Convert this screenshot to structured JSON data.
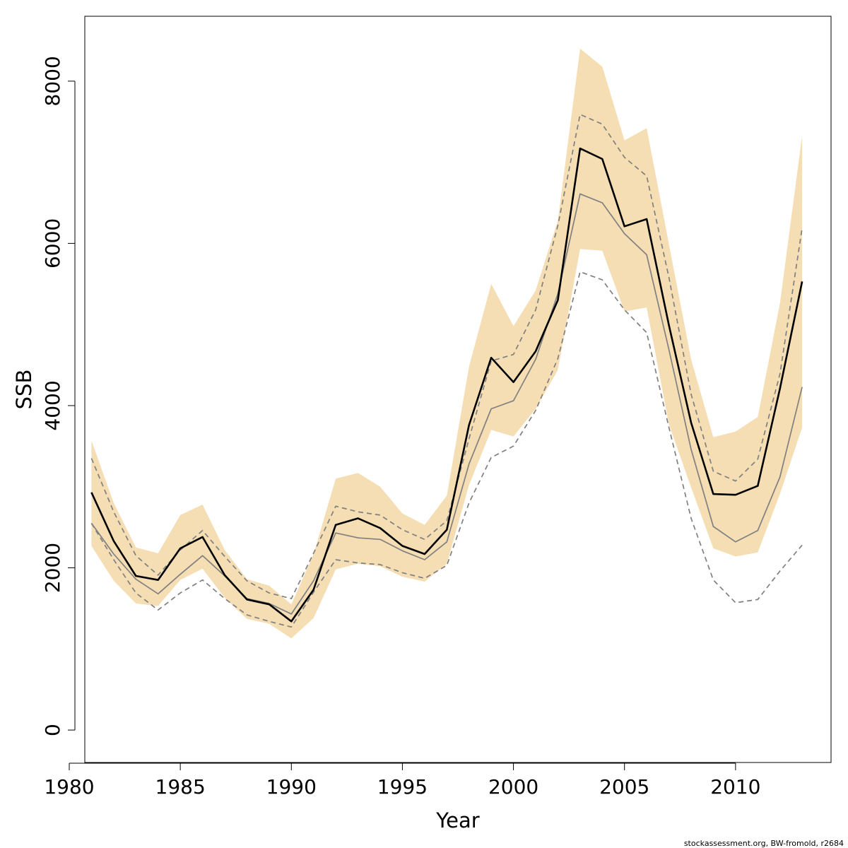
{
  "chart_data": {
    "type": "line",
    "xlabel": "Year",
    "ylabel": "SSB",
    "xlim": [
      1980.7,
      2014.3
    ],
    "ylim": [
      -400,
      8800
    ],
    "xticks": [
      1980,
      1985,
      1990,
      1995,
      2000,
      2005,
      2010
    ],
    "yticks": [
      0,
      2000,
      4000,
      6000,
      8000
    ],
    "grid": false,
    "legend": "none",
    "x": [
      1981,
      1982,
      1983,
      1984,
      1985,
      1986,
      1987,
      1988,
      1989,
      1990,
      1991,
      1992,
      1993,
      1994,
      1995,
      1996,
      1997,
      1998,
      1999,
      2000,
      2001,
      2002,
      2003,
      2004,
      2005,
      2006,
      2007,
      2008,
      2009,
      2010,
      2011,
      2012,
      2013
    ],
    "band": {
      "lower": [
        2270,
        1840,
        1560,
        1530,
        1850,
        1990,
        1630,
        1370,
        1310,
        1130,
        1380,
        1980,
        2050,
        2020,
        1890,
        1830,
        2050,
        3020,
        3700,
        3620,
        3960,
        4440,
        5930,
        5910,
        5160,
        5210,
        3770,
        2990,
        2240,
        2140,
        2190,
        2910,
        3730
      ],
      "upper": [
        3570,
        2800,
        2250,
        2180,
        2650,
        2780,
        2220,
        1860,
        1780,
        1550,
        2170,
        3100,
        3170,
        3000,
        2670,
        2530,
        2890,
        4480,
        5500,
        4980,
        5420,
        6280,
        8400,
        8180,
        7270,
        7420,
        5990,
        4570,
        3610,
        3680,
        3860,
        5260,
        7330
      ],
      "color": "#f5deb3"
    },
    "series": [
      {
        "values": [
          2930,
          2330,
          1900,
          1850,
          2240,
          2380,
          1910,
          1610,
          1550,
          1340,
          1730,
          2530,
          2610,
          2490,
          2270,
          2170,
          2470,
          3760,
          4590,
          4290,
          4670,
          5300,
          7170,
          7040,
          6210,
          6300,
          4990,
          3790,
          2910,
          2900,
          3010,
          4210,
          5530
        ],
        "color": "#000000",
        "style": "solid",
        "width": 2.6
      },
      {
        "values": [
          2550,
          2170,
          1860,
          1680,
          1920,
          2150,
          1900,
          1620,
          1560,
          1430,
          1840,
          2430,
          2370,
          2350,
          2210,
          2100,
          2320,
          3280,
          3960,
          4060,
          4570,
          5380,
          6610,
          6500,
          6120,
          5860,
          4690,
          3460,
          2510,
          2320,
          2460,
          3120,
          4230
        ],
        "color": "#808080",
        "style": "solid",
        "width": 1.7
      },
      {
        "values": [
          3350,
          2690,
          2150,
          1910,
          2220,
          2460,
          2140,
          1840,
          1690,
          1620,
          2180,
          2760,
          2690,
          2650,
          2470,
          2350,
          2580,
          3590,
          4550,
          4630,
          5180,
          6220,
          7590,
          7470,
          7060,
          6830,
          5580,
          4140,
          3190,
          3070,
          3340,
          4390,
          6190
        ],
        "color": "#808080",
        "style": "dashed",
        "width": 1.7
      },
      {
        "values": [
          2550,
          2100,
          1690,
          1480,
          1690,
          1850,
          1620,
          1420,
          1340,
          1270,
          1700,
          2100,
          2060,
          2040,
          1940,
          1870,
          2030,
          2800,
          3360,
          3500,
          3940,
          4580,
          5650,
          5550,
          5180,
          4900,
          3730,
          2610,
          1850,
          1570,
          1610,
          1960,
          2280
        ],
        "color": "#808080",
        "style": "dashed",
        "width": 1.7
      }
    ]
  },
  "footer": "stockassessment.org, BW-fromold, r2684"
}
